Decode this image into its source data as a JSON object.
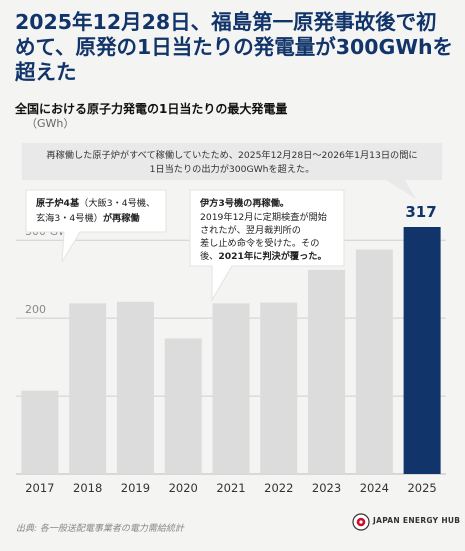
{
  "headline": "2025年12月28日、福島第一原発事故後で初めて、原発の1日当たりの発電量が300GWhを超えた",
  "subtitle": "全国における原子力発電の1日当たりの最大発電量",
  "unit": "（GWh）",
  "source": "出典: 各一般送配電事業者の電力需給統計",
  "logo": {
    "text": "JAPAN ENERGY HUB"
  },
  "colors": {
    "bar": "#dcdcdc",
    "highlight": "#11346a",
    "headline": "#11346a",
    "background": "#f4f4f2",
    "callout": "#e9e9e9"
  },
  "chart_data": {
    "type": "bar",
    "categories": [
      "2017",
      "2018",
      "2019",
      "2020",
      "2021",
      "2022",
      "2023",
      "2024",
      "2025"
    ],
    "values": [
      107,
      219,
      221,
      174,
      219,
      220,
      262,
      288,
      317
    ],
    "highlight_index": 8,
    "highlight_label": "317",
    "y_gridlines": [
      {
        "value": 100,
        "label": ""
      },
      {
        "value": 200,
        "label": "200"
      },
      {
        "value": 300,
        "label": "300 GWh"
      }
    ],
    "ylim": [
      0,
      360
    ],
    "annotations": [
      {
        "category": "2025",
        "lines": [
          "再稼働した原子炉がすべて稼働していたため、2025年12月28日〜2026年1月13日の間に",
          "1日当たりの出力が300GWhを超えた。"
        ]
      },
      {
        "category": "2018",
        "lines": [
          "原子炉4基（大飯3・4号機、",
          "玄海3・4号機）が再稼働"
        ]
      },
      {
        "category": "2020",
        "lines": [
          "伊方3号機の再稼働。",
          "2019年12月に定期検査が開始",
          "されたが、翌月裁判所の",
          "差し止め命令を受けた。その",
          "後、2021年に判決が覆った。"
        ]
      }
    ]
  }
}
